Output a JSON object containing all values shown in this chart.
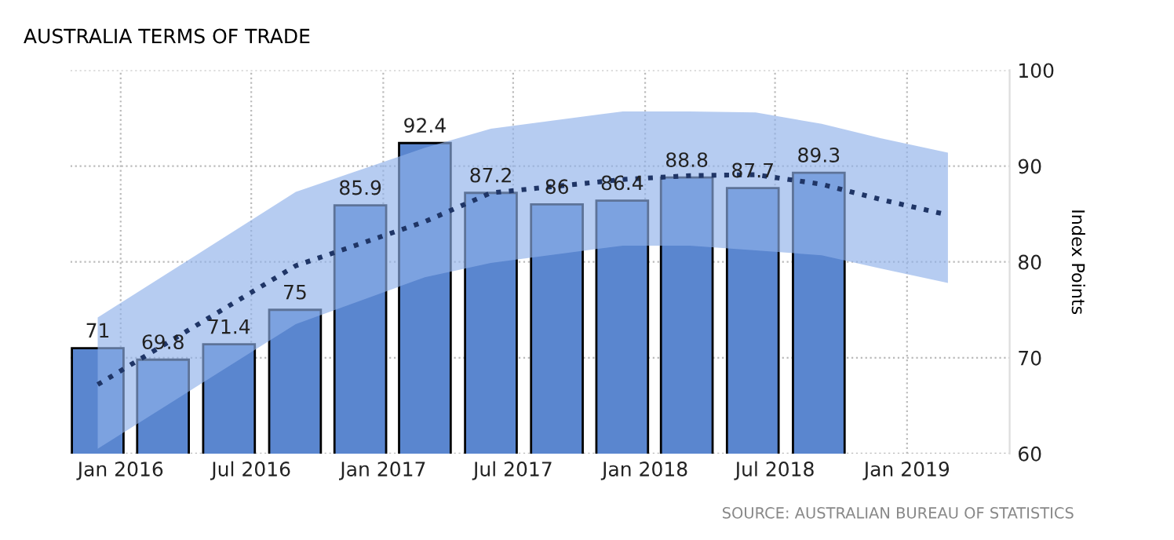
{
  "chart_data": {
    "type": "bar",
    "title": "AUSTRALIA TERMS OF TRADE",
    "ylabel": "Index Points",
    "annotations": [
      "SOURCE: AUSTRALIAN BUREAU OF STATISTICS"
    ],
    "x": [
      "2015-11-30",
      "2016-02-29",
      "2016-05-31",
      "2016-08-31",
      "2016-11-30",
      "2017-02-28",
      "2017-05-31",
      "2017-08-31",
      "2017-11-30",
      "2018-02-28",
      "2018-05-31",
      "2018-08-31"
    ],
    "series": [
      {
        "color": "#5a86cf",
        "values": [
          71,
          69.8,
          71.4,
          75,
          85.9,
          92.4,
          87.2,
          86,
          86.4,
          88.8,
          87.7,
          89.3
        ],
        "value_labels": [
          "71",
          "69.8",
          "71.4",
          "75",
          "85.9",
          "92.4",
          "87.2",
          "86",
          "86.4",
          "88.8",
          "87.7",
          "89.3"
        ]
      },
      {
        "type": "line",
        "color": "#1f3566",
        "line_style": "dotted",
        "x": [
          "2015-11-30",
          "2016-09-01",
          "2017-02-28",
          "2017-05-31",
          "2017-12-01",
          "2018-03-04",
          "2018-06-04",
          "2018-09-04",
          "2018-11-26",
          "2019-02-27"
        ],
        "values": [
          67.2,
          79.6,
          84.2,
          87.2,
          88.6,
          89.0,
          89.1,
          88.1,
          86.5,
          84.9
        ],
        "lower": [
          60.5,
          73.5,
          78.4,
          79.9,
          81.7,
          81.7,
          81.2,
          80.7,
          79.3,
          77.8
        ],
        "upper": [
          74.2,
          87.3,
          91.9,
          93.9,
          95.7,
          95.7,
          95.6,
          94.4,
          92.9,
          91.4
        ]
      }
    ],
    "xlim": [
      "2015-10-23",
      "2019-05-24"
    ],
    "xticks": [
      {
        "value": "2016-01-01",
        "label": "Jan 2016"
      },
      {
        "value": "2016-07-01",
        "label": "Jul 2016"
      },
      {
        "value": "2017-01-01",
        "label": "Jan 2017"
      },
      {
        "value": "2017-07-01",
        "label": "Jul 2017"
      },
      {
        "value": "2018-01-01",
        "label": "Jan 2018"
      },
      {
        "value": "2018-07-01",
        "label": "Jul 2018"
      },
      {
        "value": "2019-01-01",
        "label": "Jan 2019"
      }
    ],
    "ylim": [
      60,
      100
    ],
    "yticks": [
      60,
      70,
      80,
      90,
      100
    ],
    "grid": true,
    "legend": false
  }
}
